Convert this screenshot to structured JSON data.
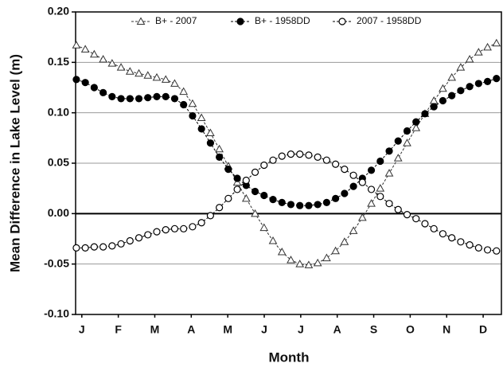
{
  "chart_data": {
    "type": "line",
    "y_label": "Mean Difference in Lake Level (m)",
    "x_label": "Month",
    "xlim": [
      0.33,
      12
    ],
    "xticks": [
      {
        "value": 0.5,
        "label": "J"
      },
      {
        "value": 1.5,
        "label": "F"
      },
      {
        "value": 2.5,
        "label": "M"
      },
      {
        "value": 3.5,
        "label": "A"
      },
      {
        "value": 4.5,
        "label": "M"
      },
      {
        "value": 5.5,
        "label": "J"
      },
      {
        "value": 6.5,
        "label": "J"
      },
      {
        "value": 7.5,
        "label": "A"
      },
      {
        "value": 8.5,
        "label": "S"
      },
      {
        "value": 9.5,
        "label": "O"
      },
      {
        "value": 10.5,
        "label": "N"
      },
      {
        "value": 11.5,
        "label": "D"
      }
    ],
    "ylim": [
      -0.1,
      0.2
    ],
    "yticks": [
      {
        "value": -0.1,
        "label": "-0.10"
      },
      -0.05,
      {
        "value": 0,
        "label": "0.00"
      },
      0.05,
      {
        "value": 0.1,
        "label": "0.10"
      },
      0.15,
      {
        "value": 0.2,
        "label": "0.20"
      }
    ],
    "grid": true,
    "legend": "top",
    "x": [
      0.35,
      0.595,
      0.84,
      1.085,
      1.33,
      1.575,
      1.82,
      2.065,
      2.31,
      2.555,
      2.8,
      3.045,
      3.29,
      3.535,
      3.78,
      4.025,
      4.27,
      4.515,
      4.76,
      5.005,
      5.25,
      5.495,
      5.74,
      5.985,
      6.23,
      6.475,
      6.72,
      6.965,
      7.21,
      7.455,
      7.7,
      7.945,
      8.19,
      8.435,
      8.68,
      8.925,
      9.17,
      9.415,
      9.66,
      9.905,
      10.15,
      10.395,
      10.64,
      10.885,
      11.13,
      11.375,
      11.62,
      11.865
    ],
    "series": [
      {
        "name": "B+ - 2007",
        "color": "#333333",
        "marker": "triangle-open",
        "values": [
          0.167,
          0.163,
          0.158,
          0.153,
          0.149,
          0.145,
          0.141,
          0.139,
          0.137,
          0.135,
          0.133,
          0.129,
          0.121,
          0.109,
          0.095,
          0.08,
          0.064,
          0.047,
          0.031,
          0.015,
          0.0,
          -0.014,
          -0.027,
          -0.038,
          -0.046,
          -0.05,
          -0.051,
          -0.049,
          -0.044,
          -0.037,
          -0.028,
          -0.017,
          -0.004,
          0.01,
          0.025,
          0.04,
          0.055,
          0.07,
          0.085,
          0.099,
          0.112,
          0.124,
          0.135,
          0.145,
          0.153,
          0.16,
          0.165,
          0.169
        ]
      },
      {
        "name": "B+ - 1958DD",
        "color": "#000000",
        "marker": "circle-filled",
        "values": [
          0.133,
          0.13,
          0.125,
          0.12,
          0.116,
          0.114,
          0.114,
          0.114,
          0.115,
          0.116,
          0.116,
          0.114,
          0.108,
          0.097,
          0.084,
          0.07,
          0.056,
          0.044,
          0.035,
          0.028,
          0.022,
          0.018,
          0.014,
          0.011,
          0.009,
          0.008,
          0.008,
          0.009,
          0.011,
          0.015,
          0.02,
          0.027,
          0.035,
          0.043,
          0.052,
          0.062,
          0.072,
          0.082,
          0.091,
          0.099,
          0.106,
          0.112,
          0.117,
          0.122,
          0.126,
          0.129,
          0.131,
          0.134
        ]
      },
      {
        "name": "2007 - 1958DD",
        "color": "#000000",
        "marker": "circle-open",
        "values": [
          -0.034,
          -0.034,
          -0.033,
          -0.033,
          -0.032,
          -0.03,
          -0.027,
          -0.024,
          -0.021,
          -0.018,
          -0.016,
          -0.015,
          -0.015,
          -0.013,
          -0.009,
          -0.002,
          0.006,
          0.015,
          0.024,
          0.033,
          0.041,
          0.048,
          0.053,
          0.057,
          0.059,
          0.059,
          0.058,
          0.056,
          0.053,
          0.049,
          0.044,
          0.038,
          0.031,
          0.024,
          0.017,
          0.01,
          0.004,
          -0.001,
          -0.005,
          -0.01,
          -0.015,
          -0.02,
          -0.024,
          -0.028,
          -0.031,
          -0.034,
          -0.036,
          -0.037
        ]
      }
    ]
  }
}
